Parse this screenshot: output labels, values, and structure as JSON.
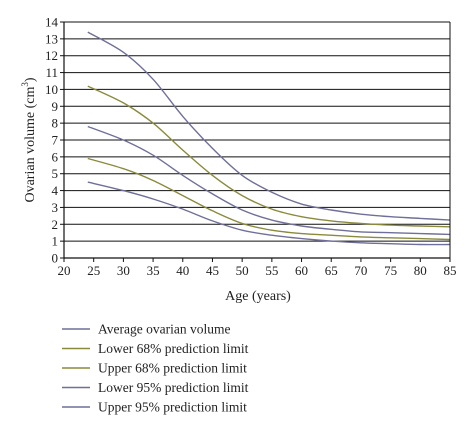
{
  "chart_data": {
    "type": "line",
    "xlabel": "Age (years)",
    "ylabel_main": "Ovarian volume (cm",
    "ylabel_sup": "3",
    "ylabel_close": ")",
    "xlim": [
      20,
      85
    ],
    "ylim": [
      0,
      14
    ],
    "xticks": [
      "20",
      "25",
      "30",
      "35",
      "40",
      "45",
      "50",
      "55",
      "60",
      "65",
      "70",
      "75",
      "80",
      "85"
    ],
    "yticks": [
      "0",
      "1",
      "2",
      "3",
      "4",
      "5",
      "6",
      "7",
      "8",
      "9",
      "10",
      "11",
      "12",
      "13",
      "14"
    ],
    "grid": "horizontal",
    "legend_position": "bottom",
    "x": [
      24,
      30,
      35,
      40,
      45,
      50,
      55,
      60,
      65,
      70,
      75,
      80,
      85
    ],
    "series": [
      {
        "name": "Average ovarian volume",
        "color": "#6f6f9a",
        "values": [
          4.5,
          4.0,
          3.5,
          2.9,
          2.2,
          1.65,
          1.35,
          1.15,
          1.0,
          0.9,
          0.85,
          0.8,
          0.8
        ]
      },
      {
        "name": "Lower 68% prediction limit",
        "color": "#8a8a3c",
        "values": [
          5.9,
          5.3,
          4.6,
          3.7,
          2.8,
          2.05,
          1.65,
          1.45,
          1.35,
          1.25,
          1.2,
          1.15,
          1.1
        ]
      },
      {
        "name": "Upper 68% prediction limit",
        "color": "#8a8a3c",
        "values": [
          10.2,
          9.2,
          8.0,
          6.4,
          4.9,
          3.7,
          2.9,
          2.45,
          2.2,
          2.05,
          1.95,
          1.9,
          1.85
        ]
      },
      {
        "name": "Lower 95% prediction limit",
        "color": "#6f6f9a",
        "values": [
          7.8,
          7.0,
          6.1,
          4.9,
          3.8,
          2.85,
          2.25,
          1.9,
          1.7,
          1.55,
          1.5,
          1.45,
          1.4
        ]
      },
      {
        "name": "Upper 95% prediction limit",
        "color": "#6f6f9a",
        "values": [
          13.4,
          12.2,
          10.6,
          8.4,
          6.5,
          4.9,
          3.9,
          3.2,
          2.85,
          2.6,
          2.45,
          2.35,
          2.25
        ]
      }
    ]
  }
}
